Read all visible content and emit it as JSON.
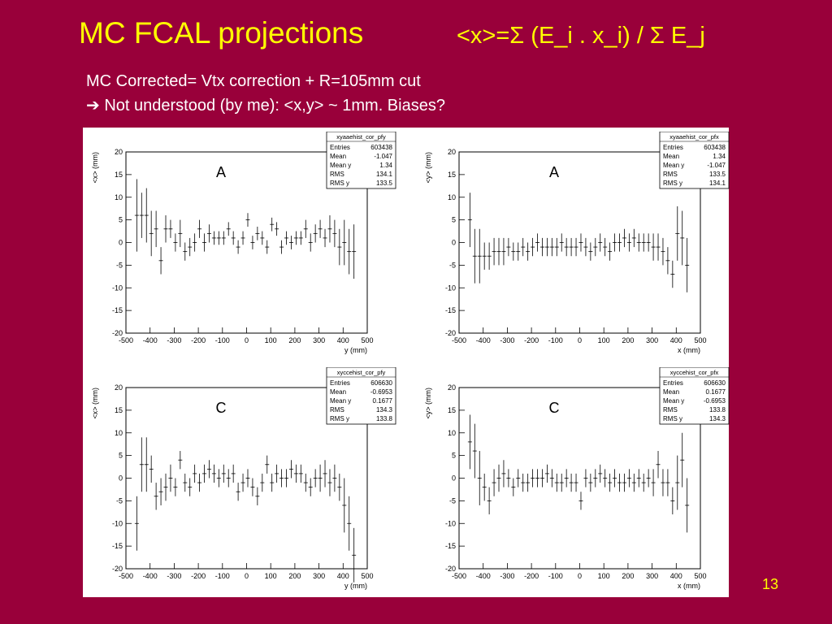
{
  "slide": {
    "title": "MC FCAL projections",
    "formula": "<x>=Σ (E_i . x_i) / Σ  E_j",
    "subtitle_line1": "MC Corrected= Vtx correction + R=105mm cut",
    "subtitle_line2": "Not understood (by me):  <x,y> ~ 1mm.   Biases?",
    "arrow_glyph": "➔",
    "page_number": "13",
    "colors": {
      "background": "#99003a",
      "title": "#ffff00",
      "text": "#ffffff"
    }
  },
  "chart_data": [
    {
      "type": "scatter",
      "histogram": "xyaaehist_cor_pfy",
      "annotation": "A",
      "xlabel": "y (mm)",
      "ylabel": "<x> (mm)",
      "xlim": [
        -500,
        500
      ],
      "ylim": [
        -20,
        20
      ],
      "xticks": [
        -500,
        -400,
        -300,
        -200,
        -100,
        0,
        100,
        200,
        300,
        400,
        500
      ],
      "yticks": [
        20,
        15,
        10,
        5,
        0,
        -5,
        -10,
        -15,
        -20
      ],
      "stats": [
        [
          "Entries",
          "603438"
        ],
        [
          "Mean",
          "-1.047"
        ],
        [
          "Mean y",
          "1.34"
        ],
        [
          "RMS",
          "134.1"
        ],
        [
          "RMS y",
          "133.5"
        ]
      ],
      "x": [
        -455,
        -435,
        -415,
        -395,
        -375,
        -355,
        -335,
        -315,
        -295,
        -275,
        -255,
        -235,
        -215,
        -195,
        -175,
        -155,
        -135,
        -115,
        -95,
        -75,
        -55,
        -35,
        -15,
        5,
        25,
        45,
        65,
        85,
        105,
        125,
        145,
        165,
        185,
        205,
        225,
        245,
        265,
        285,
        305,
        325,
        345,
        365,
        385,
        405,
        425,
        445
      ],
      "y": [
        6,
        6,
        6,
        2,
        3,
        -4,
        3,
        3,
        0,
        2,
        -2,
        -1,
        0,
        3,
        0,
        2,
        1,
        1,
        1,
        3,
        1,
        -1,
        1,
        5,
        0,
        2,
        1,
        -1,
        4,
        3,
        -1,
        1,
        0,
        1,
        1,
        3,
        0,
        2,
        3,
        1,
        3,
        2,
        -1,
        0,
        -2,
        -2
      ],
      "err": [
        8,
        5,
        6,
        5,
        4,
        3,
        3,
        2,
        2,
        3,
        2,
        2,
        2,
        2,
        2,
        2,
        1.5,
        1.5,
        1.5,
        1.5,
        1.5,
        1.5,
        1.5,
        1.5,
        1.5,
        1.5,
        1.5,
        1.5,
        1.5,
        1.5,
        1.5,
        1.5,
        1.5,
        1.5,
        1.5,
        2,
        2,
        2,
        2,
        2,
        3,
        3,
        4,
        5,
        5,
        6
      ]
    },
    {
      "type": "scatter",
      "histogram": "xyaaehist_cor_pfx",
      "annotation": "A",
      "xlabel": "x (mm)",
      "ylabel": "<y> (mm)",
      "xlim": [
        -500,
        500
      ],
      "ylim": [
        -20,
        20
      ],
      "xticks": [
        -500,
        -400,
        -300,
        -200,
        -100,
        0,
        100,
        200,
        300,
        400,
        500
      ],
      "yticks": [
        20,
        15,
        10,
        5,
        0,
        -5,
        -10,
        -15,
        -20
      ],
      "stats": [
        [
          "Entries",
          "603438"
        ],
        [
          "Mean",
          "1.34"
        ],
        [
          "Mean y",
          "-1.047"
        ],
        [
          "RMS",
          "133.5"
        ],
        [
          "RMS y",
          "134.1"
        ]
      ],
      "x": [
        -455,
        -435,
        -415,
        -395,
        -375,
        -355,
        -335,
        -315,
        -295,
        -275,
        -255,
        -235,
        -215,
        -195,
        -175,
        -155,
        -135,
        -115,
        -95,
        -75,
        -55,
        -35,
        -15,
        5,
        25,
        45,
        65,
        85,
        105,
        125,
        145,
        165,
        185,
        205,
        225,
        245,
        265,
        285,
        305,
        325,
        345,
        365,
        385,
        405,
        425,
        445
      ],
      "y": [
        5,
        -3,
        -3,
        -3,
        -3,
        -2,
        -2,
        -2,
        -1,
        -2,
        -2,
        -1,
        -2,
        -1,
        0,
        -1,
        -1,
        -1,
        -1,
        0,
        -1,
        -1,
        -1,
        0,
        -1,
        -2,
        -1,
        0,
        -1,
        -2,
        0,
        0,
        1,
        0,
        1,
        0,
        0,
        0,
        -1,
        -1,
        -2,
        -4,
        -7,
        2,
        1,
        -5
      ]
    },
    {
      "type": "scatter",
      "histogram": "xyccehist_cor_pfy",
      "annotation": "C",
      "xlabel": "y (mm)",
      "ylabel": "<x> (mm)",
      "xlim": [
        -500,
        500
      ],
      "ylim": [
        -20,
        20
      ],
      "xticks": [
        -500,
        -400,
        -300,
        -200,
        -100,
        0,
        100,
        200,
        300,
        400,
        500
      ],
      "yticks": [
        20,
        15,
        10,
        5,
        0,
        -5,
        -10,
        -15,
        -20
      ],
      "stats": [
        [
          "Entries",
          "606630"
        ],
        [
          "Mean",
          "-0.6953"
        ],
        [
          "Mean y",
          "0.1677"
        ],
        [
          "RMS",
          "134.3"
        ],
        [
          "RMS y",
          "133.8"
        ]
      ],
      "x": [
        -455,
        -435,
        -415,
        -395,
        -375,
        -355,
        -335,
        -315,
        -295,
        -275,
        -255,
        -235,
        -215,
        -195,
        -175,
        -155,
        -135,
        -115,
        -95,
        -75,
        -55,
        -35,
        -15,
        5,
        25,
        45,
        65,
        85,
        105,
        125,
        145,
        165,
        185,
        205,
        225,
        245,
        265,
        285,
        305,
        325,
        345,
        365,
        385,
        405,
        425,
        445
      ],
      "y": [
        -10,
        3,
        3,
        2,
        -4,
        -3,
        -2,
        0,
        -2,
        4,
        -1,
        -2,
        1,
        -1,
        1,
        2,
        1,
        0,
        1,
        0,
        1,
        -3,
        -1,
        0,
        -2,
        -4,
        -1,
        3,
        -1,
        1,
        0,
        0,
        2,
        1,
        1,
        -1,
        -2,
        0,
        0,
        1,
        -1,
        0,
        -2,
        -6,
        -10,
        -17
      ]
    },
    {
      "type": "scatter",
      "histogram": "xyccehist_cor_pfx",
      "annotation": "C",
      "xlabel": "x (mm)",
      "ylabel": "<y> (mm)",
      "xlim": [
        -500,
        500
      ],
      "ylim": [
        -20,
        20
      ],
      "xticks": [
        -500,
        -400,
        -300,
        -200,
        -100,
        0,
        100,
        200,
        300,
        400,
        500
      ],
      "yticks": [
        20,
        15,
        10,
        5,
        0,
        -5,
        -10,
        -15,
        -20
      ],
      "stats": [
        [
          "Entries",
          "606630"
        ],
        [
          "Mean",
          "0.1677"
        ],
        [
          "Mean y",
          "-0.6953"
        ],
        [
          "RMS",
          "133.8"
        ],
        [
          "RMS y",
          "134.3"
        ]
      ],
      "x": [
        -455,
        -435,
        -415,
        -395,
        -375,
        -355,
        -335,
        -315,
        -295,
        -275,
        -255,
        -235,
        -215,
        -195,
        -175,
        -155,
        -135,
        -115,
        -95,
        -75,
        -55,
        -35,
        -15,
        5,
        25,
        45,
        65,
        85,
        105,
        125,
        145,
        165,
        185,
        205,
        225,
        245,
        265,
        285,
        305,
        325,
        345,
        365,
        385,
        405,
        425,
        445
      ],
      "y": [
        8,
        6,
        0,
        -2,
        -5,
        -1,
        0,
        1,
        0,
        -2,
        0,
        -1,
        -1,
        0,
        0,
        0,
        1,
        0,
        -1,
        -1,
        0,
        -1,
        -1,
        -5,
        0,
        -1,
        0,
        1,
        0,
        -1,
        0,
        -1,
        -1,
        0,
        -1,
        0,
        -1,
        0,
        -1,
        3,
        -1,
        -1,
        -5,
        -1,
        4,
        -6
      ]
    }
  ]
}
